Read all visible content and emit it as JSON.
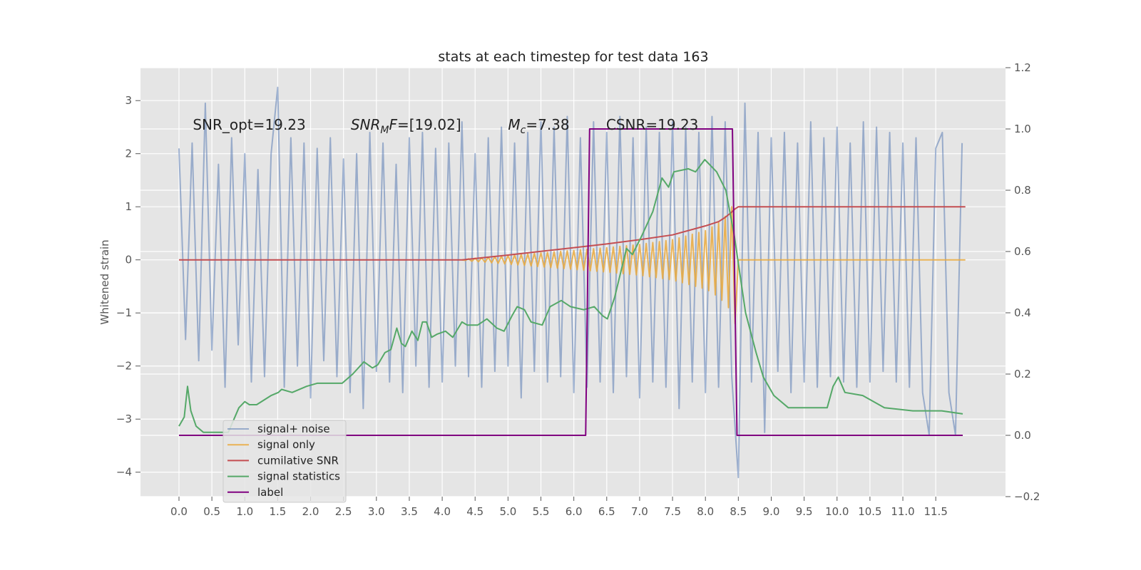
{
  "chart_data": {
    "type": "line",
    "title": "stats at each timestep for test data 163",
    "ylabel": "Whitened strain",
    "xlim": [
      -0.585,
      12.56
    ],
    "ylim": [
      -4.46,
      3.62
    ],
    "y2lim": [
      -0.2,
      1.2
    ],
    "xticks": [
      {
        "value": 0,
        "label": "0.0"
      },
      0.5,
      {
        "value": 1,
        "label": "1.0"
      },
      1.5,
      {
        "value": 2,
        "label": "2.0"
      },
      2.5,
      {
        "value": 3,
        "label": "3.0"
      },
      3.5,
      {
        "value": 4,
        "label": "4.0"
      },
      4.5,
      {
        "value": 5,
        "label": "5.0"
      },
      5.5,
      {
        "value": 6,
        "label": "6.0"
      },
      6.5,
      {
        "value": 7,
        "label": "7.0"
      },
      7.5,
      {
        "value": 8,
        "label": "8.0"
      },
      8.5,
      {
        "value": 9,
        "label": "9.0"
      },
      9.5,
      {
        "value": 10,
        "label": "10.0"
      },
      10.5,
      {
        "value": 11,
        "label": "11.0"
      },
      11.5
    ],
    "yticks": [
      {
        "value": -4,
        "label": "−4"
      },
      {
        "value": -3,
        "label": "−3"
      },
      {
        "value": -2,
        "label": "−2"
      },
      {
        "value": -1,
        "label": "−1"
      },
      0,
      1,
      2,
      3
    ],
    "y2ticks": [
      {
        "value": -0.2,
        "label": "−0.2"
      },
      {
        "value": 0,
        "label": "0.0"
      },
      0.2,
      0.4,
      0.6,
      0.8,
      {
        "value": 1,
        "label": "1.0"
      },
      1.2
    ],
    "grid": true,
    "legend": "lower left",
    "annotations": [
      {
        "x": 0.21,
        "y": 2.45,
        "parts": [
          {
            "text": "SNR_opt=19.23",
            "style": "normal"
          }
        ]
      },
      {
        "x": 2.61,
        "y": 2.45,
        "parts": [
          {
            "text": "SNR",
            "style": "italic"
          },
          {
            "text": "M",
            "style": "italic-sub"
          },
          {
            "text": "F",
            "style": "italic"
          },
          {
            "text": "=[19.02]",
            "style": "normal"
          }
        ]
      },
      {
        "x": 5.0,
        "y": 2.45,
        "parts": [
          {
            "text": "M",
            "style": "italic"
          },
          {
            "text": "c",
            "style": "italic-sub"
          },
          {
            "text": "=7.38",
            "style": "normal"
          }
        ]
      },
      {
        "x": 6.49,
        "y": 2.45,
        "parts": [
          {
            "text": "CSNR=19.23",
            "style": "normal"
          }
        ]
      }
    ],
    "series": [
      {
        "name": "signal+ noise",
        "color": "#4c72b0",
        "opacity": 0.5,
        "axis": "y",
        "x": [
          0.0,
          0.1,
          0.2,
          0.3,
          0.4,
          0.5,
          0.6,
          0.7,
          0.8,
          0.9,
          1.0,
          1.1,
          1.2,
          1.3,
          1.4,
          1.5,
          1.6,
          1.7,
          1.8,
          1.9,
          2.0,
          2.1,
          2.2,
          2.3,
          2.4,
          2.5,
          2.6,
          2.7,
          2.8,
          2.9,
          3.0,
          3.1,
          3.2,
          3.3,
          3.4,
          3.5,
          3.6,
          3.7,
          3.8,
          3.9,
          4.0,
          4.1,
          4.2,
          4.3,
          4.4,
          4.5,
          4.6,
          4.7,
          4.8,
          4.9,
          5.0,
          5.1,
          5.2,
          5.3,
          5.4,
          5.5,
          5.6,
          5.7,
          5.8,
          5.9,
          6.0,
          6.1,
          6.2,
          6.3,
          6.4,
          6.5,
          6.6,
          6.7,
          6.8,
          6.9,
          7.0,
          7.1,
          7.2,
          7.3,
          7.4,
          7.5,
          7.6,
          7.7,
          7.8,
          7.9,
          8.0,
          8.1,
          8.2,
          8.3,
          8.4,
          8.5,
          8.6,
          8.7,
          8.8,
          8.9,
          9.0,
          9.1,
          9.2,
          9.3,
          9.4,
          9.5,
          9.6,
          9.7,
          9.8,
          9.9,
          10.0,
          10.1,
          10.2,
          10.3,
          10.4,
          10.5,
          10.6,
          10.7,
          10.8,
          10.9,
          11.0,
          11.1,
          11.2,
          11.3,
          11.4,
          11.5,
          11.6,
          11.7,
          11.8,
          11.9
        ],
        "values": [
          2.1,
          -1.5,
          2.2,
          -1.9,
          2.95,
          -1.7,
          1.8,
          -2.4,
          2.3,
          -1.6,
          2.0,
          -2.3,
          1.7,
          -2.2,
          2.0,
          3.25,
          -2.4,
          2.3,
          -2.0,
          2.2,
          -2.6,
          2.1,
          -1.9,
          2.3,
          -2.2,
          1.9,
          -2.5,
          2.0,
          -2.8,
          2.4,
          -2.1,
          2.2,
          -2.3,
          1.8,
          -2.5,
          2.3,
          -2.0,
          2.4,
          -2.4,
          2.1,
          -2.3,
          2.2,
          -2.0,
          2.6,
          -2.2,
          2.0,
          -2.4,
          2.3,
          -2.1,
          2.5,
          -2.0,
          2.2,
          -2.6,
          2.4,
          -2.1,
          2.6,
          -2.3,
          2.5,
          -2.2,
          2.7,
          -2.5,
          2.3,
          -2.4,
          2.6,
          -2.3,
          2.4,
          -2.5,
          2.7,
          -2.2,
          2.3,
          -2.6,
          2.5,
          -2.3,
          2.4,
          -2.4,
          2.6,
          -2.8,
          2.5,
          -2.3,
          2.4,
          -2.5,
          2.7,
          -2.4,
          2.6,
          -2.2,
          -4.1,
          2.95,
          -2.3,
          2.4,
          -3.25,
          2.3,
          -2.1,
          2.4,
          -2.5,
          2.2,
          -2.3,
          2.6,
          -2.4,
          2.3,
          -2.2,
          2.5,
          -2.3,
          2.2,
          -2.4,
          2.6,
          -2.3,
          2.5,
          -2.1,
          2.4,
          -2.3,
          2.2,
          -2.4,
          2.3,
          -2.5,
          -3.3,
          2.1,
          2.4,
          -2.5,
          -3.3,
          2.2
        ]
      },
      {
        "name": "signal only",
        "color": "#eaa93c",
        "opacity": 0.85,
        "axis": "y",
        "x": [
          4.3,
          4.35,
          4.4,
          4.45,
          4.5,
          4.55,
          4.6,
          4.65,
          4.7,
          4.75,
          4.8,
          4.85,
          4.9,
          4.95,
          5.0,
          5.05,
          5.1,
          5.15,
          5.2,
          5.25,
          5.3,
          5.35,
          5.4,
          5.45,
          5.5,
          5.55,
          5.6,
          5.65,
          5.7,
          5.75,
          5.8,
          5.85,
          5.9,
          5.95,
          6.0,
          6.05,
          6.1,
          6.15,
          6.2,
          6.25,
          6.3,
          6.35,
          6.4,
          6.45,
          6.5,
          6.55,
          6.6,
          6.65,
          6.7,
          6.75,
          6.8,
          6.85,
          6.9,
          6.95,
          7.0,
          7.05,
          7.1,
          7.15,
          7.2,
          7.25,
          7.3,
          7.35,
          7.4,
          7.45,
          7.5,
          7.55,
          7.6,
          7.65,
          7.7,
          7.75,
          7.8,
          7.85,
          7.9,
          7.95,
          8.0,
          8.05,
          8.1,
          8.15,
          8.2,
          8.25,
          8.3,
          8.35,
          8.4,
          8.45,
          8.5,
          11.95
        ],
        "values": [
          0,
          -0.01,
          0.02,
          -0.025,
          0.03,
          -0.035,
          0.04,
          -0.045,
          0.05,
          -0.055,
          0.06,
          -0.065,
          0.07,
          -0.075,
          0.08,
          -0.085,
          0.09,
          -0.095,
          0.1,
          -0.105,
          0.11,
          -0.115,
          0.12,
          -0.125,
          0.13,
          -0.135,
          0.14,
          -0.145,
          0.15,
          -0.155,
          0.16,
          -0.165,
          0.17,
          -0.175,
          0.18,
          -0.185,
          0.19,
          -0.195,
          0.2,
          -0.205,
          0.21,
          -0.215,
          0.22,
          -0.225,
          0.23,
          -0.236,
          0.242,
          -0.248,
          0.254,
          -0.26,
          0.266,
          -0.272,
          0.278,
          -0.284,
          0.29,
          -0.299,
          0.308,
          -0.317,
          0.326,
          -0.335,
          0.344,
          -0.353,
          0.362,
          -0.371,
          0.38,
          -0.397,
          0.414,
          -0.431,
          0.448,
          -0.465,
          0.482,
          -0.499,
          0.516,
          -0.533,
          0.55,
          -0.58,
          0.62,
          -0.66,
          0.7,
          -0.76,
          0.82,
          -0.9,
          1.0,
          -1.2,
          0,
          0
        ]
      },
      {
        "name": "cumilative SNR",
        "color": "#c44e52",
        "opacity": 1,
        "axis": "y",
        "x": [
          0,
          4.3,
          5.0,
          5.5,
          6.0,
          6.5,
          7.0,
          7.5,
          8.0,
          8.2,
          8.3,
          8.4,
          8.45,
          8.5,
          11.95
        ],
        "values": [
          0,
          0,
          0.09,
          0.16,
          0.23,
          0.3,
          0.38,
          0.47,
          0.64,
          0.72,
          0.8,
          0.9,
          0.96,
          1.0,
          1.0
        ]
      },
      {
        "name": "signal statistics",
        "color": "#55a868",
        "opacity": 1,
        "axis": "y2",
        "x": [
          0.0,
          0.08,
          0.13,
          0.18,
          0.26,
          0.37,
          0.53,
          0.75,
          0.91,
          1.0,
          1.07,
          1.18,
          1.4,
          1.51,
          1.56,
          1.72,
          1.94,
          2.1,
          2.48,
          2.64,
          2.81,
          2.94,
          3.02,
          3.13,
          3.22,
          3.31,
          3.38,
          3.44,
          3.54,
          3.63,
          3.7,
          3.76,
          3.84,
          3.92,
          4.05,
          4.16,
          4.3,
          4.38,
          4.54,
          4.68,
          4.83,
          4.94,
          5.06,
          5.14,
          5.25,
          5.35,
          5.52,
          5.64,
          5.81,
          5.95,
          6.15,
          6.31,
          6.44,
          6.51,
          6.62,
          6.8,
          6.89,
          7.03,
          7.2,
          7.34,
          7.44,
          7.52,
          7.74,
          7.85,
          7.99,
          8.17,
          8.31,
          8.44,
          8.61,
          8.77,
          8.88,
          9.04,
          9.26,
          9.42,
          9.85,
          9.94,
          10.02,
          10.12,
          10.39,
          10.72,
          11.15,
          11.48,
          11.59,
          11.91
        ],
        "values": [
          0.03,
          0.06,
          0.16,
          0.08,
          0.03,
          0.01,
          0.01,
          0.01,
          0.09,
          0.11,
          0.1,
          0.1,
          0.13,
          0.14,
          0.15,
          0.14,
          0.16,
          0.17,
          0.17,
          0.2,
          0.24,
          0.22,
          0.23,
          0.27,
          0.28,
          0.35,
          0.3,
          0.29,
          0.34,
          0.31,
          0.37,
          0.37,
          0.32,
          0.33,
          0.34,
          0.32,
          0.37,
          0.36,
          0.36,
          0.38,
          0.35,
          0.34,
          0.39,
          0.42,
          0.41,
          0.37,
          0.36,
          0.42,
          0.44,
          0.42,
          0.41,
          0.42,
          0.39,
          0.38,
          0.45,
          0.61,
          0.59,
          0.65,
          0.73,
          0.84,
          0.81,
          0.86,
          0.87,
          0.86,
          0.9,
          0.86,
          0.8,
          0.65,
          0.4,
          0.27,
          0.19,
          0.13,
          0.09,
          0.09,
          0.09,
          0.16,
          0.19,
          0.14,
          0.13,
          0.09,
          0.08,
          0.08,
          0.08,
          0.07
        ]
      },
      {
        "name": "label",
        "color": "#800080",
        "opacity": 1,
        "axis": "y2",
        "x": [
          0,
          6.18,
          6.24,
          8.41,
          8.48,
          11.91
        ],
        "values": [
          0,
          0,
          1,
          1,
          0,
          0
        ]
      }
    ]
  }
}
